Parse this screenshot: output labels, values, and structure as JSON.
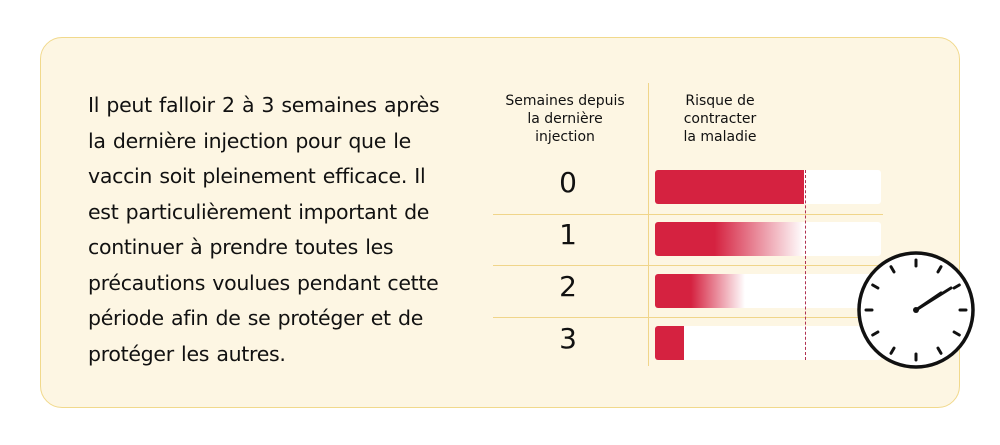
{
  "paragraph": {
    "lines": [
      "Il peut falloir 2 à 3 semaines après",
      "la dernière injection pour que le",
      "vaccin soit pleinement efficace. Il",
      "est particulièrement important de",
      "continuer à prendre toutes les",
      "précautions voulues pendant cette",
      "période afin de se protéger et de",
      "protéger les autres."
    ]
  },
  "table": {
    "weeks_header": [
      "Semaines depuis",
      "la dernière",
      "injection"
    ],
    "risk_header": [
      "Risque de",
      "contracter",
      "la maladie"
    ],
    "rows": [
      {
        "week": "0",
        "risk": 0.66,
        "fade": false
      },
      {
        "week": "1",
        "risk": 0.66,
        "fade": true
      },
      {
        "week": "2",
        "risk": 0.4,
        "fade": true
      },
      {
        "week": "3",
        "risk": 0.13,
        "fade": false
      }
    ]
  },
  "colors": {
    "bar": "#d52240",
    "card": "#fdf6e3",
    "border": "#f1d98c"
  },
  "icons": {
    "clock": "clock-icon"
  }
}
